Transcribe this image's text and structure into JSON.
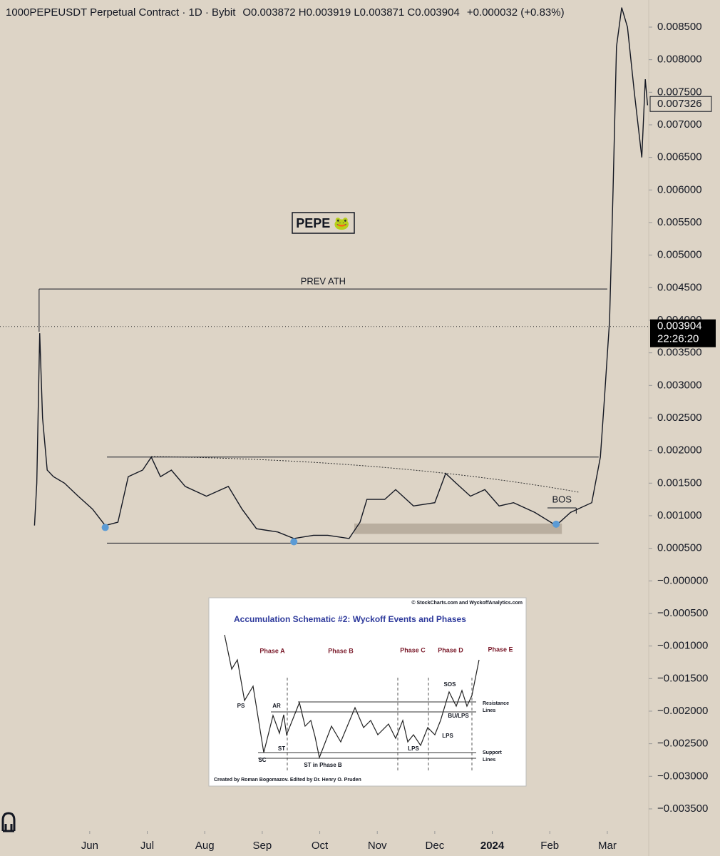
{
  "chart_data": {
    "type": "line",
    "title": "1000PEPEUSDT Perpetual Contract · 1D · Bybit",
    "ohlc": "O0.003872  H0.003919  L0.003871  C0.003904",
    "change": "+0.000032 (+0.83%)",
    "color": "#131722",
    "x": [
      4.04,
      4.08,
      4.13,
      4.18,
      4.26,
      4.37,
      4.56,
      4.8,
      5.05,
      5.27,
      5.49,
      5.67,
      5.92,
      6.07,
      6.23,
      6.42,
      6.66,
      7.03,
      7.41,
      7.65,
      7.9,
      8.27,
      8.55,
      8.89,
      9.14,
      9.51,
      9.7,
      9.82,
      10.13,
      10.32,
      10.63,
      11.0,
      11.19,
      11.37,
      11.62,
      11.87,
      12.12,
      12.37,
      12.74,
      13.11,
      13.36,
      13.73,
      13.88,
      13.95,
      14.04,
      14.1,
      14.16,
      14.25,
      14.35,
      14.47,
      14.6,
      14.66,
      14.7
    ],
    "values": [
      0.00085,
      0.0015,
      0.0038,
      0.0025,
      0.0017,
      0.0016,
      0.0015,
      0.0013,
      0.0011,
      0.00085,
      0.0009,
      0.0016,
      0.0017,
      0.0019,
      0.0016,
      0.0017,
      0.00145,
      0.0013,
      0.00145,
      0.0011,
      0.0008,
      0.00075,
      0.00065,
      0.0007,
      0.0007,
      0.00065,
      0.0009,
      0.00125,
      0.00125,
      0.0014,
      0.00115,
      0.0012,
      0.00165,
      0.0015,
      0.0013,
      0.0014,
      0.00115,
      0.0012,
      0.00105,
      0.00085,
      0.00105,
      0.0012,
      0.0019,
      0.0028,
      0.004,
      0.006,
      0.0082,
      0.0088,
      0.0085,
      0.0075,
      0.0065,
      0.0077,
      0.0073
    ],
    "xlim": [
      3.44,
      14.72
    ],
    "ylim": [
      -0.00384,
      0.008916
    ],
    "xticks": [
      {
        "value": 5,
        "label": "Jun"
      },
      {
        "value": 6,
        "label": "Jul"
      },
      {
        "value": 7,
        "label": "Aug"
      },
      {
        "value": 8,
        "label": "Sep"
      },
      {
        "value": 9,
        "label": "Oct"
      },
      {
        "value": 10,
        "label": "Nov"
      },
      {
        "value": 11,
        "label": "Dec"
      },
      {
        "value": 12,
        "label": "2024"
      },
      {
        "value": 13,
        "label": "Feb"
      },
      {
        "value": 14,
        "label": "Mar"
      }
    ],
    "yticks": [
      {
        "value": 0.0085,
        "label": "0.008500"
      },
      {
        "value": 0.008,
        "label": "0.008000"
      },
      {
        "value": 0.0075,
        "label": "0.007500"
      },
      {
        "value": 0.007,
        "label": "0.007000"
      },
      {
        "value": 0.0065,
        "label": "0.006500"
      },
      {
        "value": 0.006,
        "label": "0.006000"
      },
      {
        "value": 0.0055,
        "label": "0.005500"
      },
      {
        "value": 0.005,
        "label": "0.005000"
      },
      {
        "value": 0.0045,
        "label": "0.004500"
      },
      {
        "value": 0.004,
        "label": "0.004000"
      },
      {
        "value": 0.0035,
        "label": "0.003500"
      },
      {
        "value": 0.003,
        "label": "0.003000"
      },
      {
        "value": 0.0025,
        "label": "0.002500"
      },
      {
        "value": 0.002,
        "label": "0.002000"
      },
      {
        "value": 0.0015,
        "label": "0.001500"
      },
      {
        "value": 0.001,
        "label": "0.001000"
      },
      {
        "value": 0.0005,
        "label": "0.000500"
      },
      {
        "value": 0,
        "label": "−0.000000"
      },
      {
        "value": -0.0005,
        "label": "−0.000500"
      },
      {
        "value": -0.001,
        "label": "−0.001000"
      },
      {
        "value": -0.0015,
        "label": "−0.001500"
      },
      {
        "value": -0.002,
        "label": "−0.002000"
      },
      {
        "value": -0.0025,
        "label": "−0.002500"
      },
      {
        "value": -0.003,
        "label": "−0.003000"
      },
      {
        "value": -0.0035,
        "label": "−0.003500"
      }
    ],
    "year_tick_bold": true,
    "last_price": {
      "value": 0.003904,
      "label": "0.003904",
      "countdown": "22:26:20"
    },
    "marked_price": {
      "value": 0.007326,
      "label": "0.007326"
    },
    "label_box": "PEPE 🐸",
    "prev_ath": {
      "text": "PREV ATH",
      "value": 0.00448,
      "x": [
        4.12,
        14.0
      ]
    },
    "range_lines": [
      {
        "value": 0.0019,
        "x": [
          5.3,
          13.85
        ]
      },
      {
        "value": 0.00058,
        "x": [
          5.3,
          13.85
        ]
      }
    ],
    "zone": {
      "ylim": [
        0.00072,
        0.00088
      ],
      "xlim": [
        9.6,
        13.21
      ]
    },
    "bos": {
      "text": "BOS",
      "value": 0.00112,
      "x": [
        12.96,
        13.46
      ]
    },
    "markers": {
      "color": "#5b9bd5",
      "x": [
        5.27,
        8.55,
        13.11
      ],
      "values": [
        0.00082,
        0.0006,
        0.00087
      ]
    }
  },
  "inset": {
    "copyright": "© StockCharts.com and WyckoffAnalytics.com",
    "title": "Accumulation Schematic #2: Wyckoff Events and Phases",
    "phases": [
      "Phase A",
      "Phase B",
      "Phase C",
      "Phase D",
      "Phase E"
    ],
    "events": [
      "PS",
      "AR",
      "SC",
      "ST",
      "ST in Phase B",
      "LPS",
      "LPS",
      "SOS",
      "BU/LPS"
    ],
    "resistance": [
      "Resistance",
      "Lines"
    ],
    "support": [
      "Support",
      "Lines"
    ],
    "credit": "Created by Roman Bogomazov. Edited by Dr. Henry O. Pruden"
  }
}
